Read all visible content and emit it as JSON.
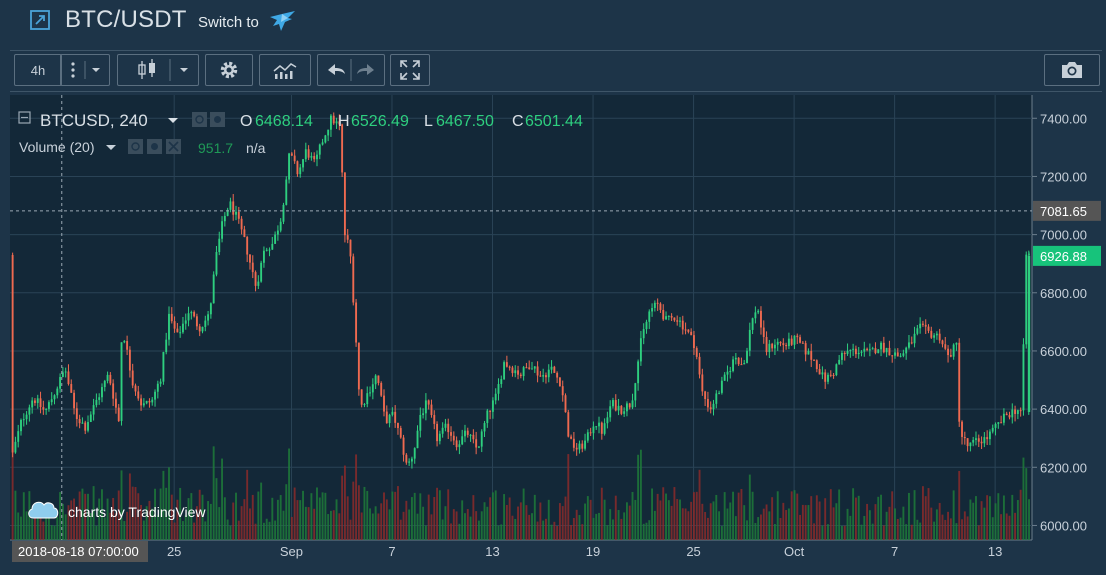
{
  "header": {
    "pair": "BTC/USDT",
    "switch_label": "Switch to",
    "pair_icon": "external-link-icon",
    "switch_icon": "bird-logo-icon"
  },
  "toolbar": {
    "interval": "4h",
    "icons": [
      "more-vertical-icon",
      "chevron-down-icon",
      "candlestick-icon",
      "chevron-down-icon",
      "gear-icon",
      "indicators-icon",
      "undo-icon",
      "redo-icon",
      "fullscreen-icon",
      "camera-icon"
    ]
  },
  "legend": {
    "symbol": "BTCUSD, 240",
    "open_label": "O",
    "open": "6468.14",
    "high_label": "H",
    "high": "6526.49",
    "low_label": "L",
    "low": "6467.50",
    "close_label": "C",
    "close": "6501.44",
    "volume_name": "Volume (20)",
    "volume_value": "951.7",
    "volume_na": "n/a"
  },
  "watermark": "charts by TradingView",
  "colors": {
    "up": "#2ecf7f",
    "down": "#ef6a50",
    "volume_up": "#1f7a3a",
    "volume_down": "#8b2a2a",
    "background": "#1d3448",
    "chart_bg": "#132838",
    "grid": "#2a4356",
    "last_price": "#17c37b",
    "crosshair_label": "#555555"
  },
  "crosshair": {
    "time_label": "2018-08-18 07:00:00",
    "price_label": "7081.65"
  },
  "last_price_label": "6926.88",
  "chart_data": {
    "type": "candlestick",
    "symbol": "BTCUSD",
    "interval": "240",
    "y_ticks": [
      "7400.00",
      "7200.00",
      "7000.00",
      "6800.00",
      "6600.00",
      "6400.00",
      "6200.00",
      "6000.00"
    ],
    "ylim": [
      5950,
      7480
    ],
    "x_ticks": [
      {
        "day": 25,
        "label": "25"
      },
      {
        "day": 32,
        "label": "Sep"
      },
      {
        "day": 38,
        "label": "7"
      },
      {
        "day": 44,
        "label": "13"
      },
      {
        "day": 50,
        "label": "19"
      },
      {
        "day": 56,
        "label": "25"
      },
      {
        "day": 62,
        "label": "Oct"
      },
      {
        "day": 68,
        "label": "7"
      },
      {
        "day": 74,
        "label": "13"
      }
    ],
    "x_range_days": [
      15.2,
      76.2
    ],
    "crosshair_day": 18.29,
    "crosshair_price": 7081.65,
    "last_price": 6926.88,
    "close_path": [
      [
        15.3,
        6210
      ],
      [
        16,
        6360
      ],
      [
        16.7,
        6440
      ],
      [
        17.4,
        6390
      ],
      [
        18,
        6460
      ],
      [
        18.6,
        6540
      ],
      [
        19.2,
        6380
      ],
      [
        19.8,
        6340
      ],
      [
        20.4,
        6420
      ],
      [
        21.2,
        6520
      ],
      [
        21.8,
        6360
      ],
      [
        22,
        6690
      ],
      [
        22.6,
        6500
      ],
      [
        23.2,
        6410
      ],
      [
        23.8,
        6430
      ],
      [
        24.3,
        6510
      ],
      [
        24.8,
        6720
      ],
      [
        25.3,
        6650
      ],
      [
        26,
        6740
      ],
      [
        26.6,
        6680
      ],
      [
        27.2,
        6720
      ],
      [
        27.6,
        6920
      ],
      [
        28,
        7040
      ],
      [
        28.4,
        7110
      ],
      [
        28.9,
        7050
      ],
      [
        29.4,
        6960
      ],
      [
        30,
        6820
      ],
      [
        30.5,
        6950
      ],
      [
        31,
        6970
      ],
      [
        31.5,
        7060
      ],
      [
        32,
        7280
      ],
      [
        32.5,
        7210
      ],
      [
        33,
        7290
      ],
      [
        33.5,
        7240
      ],
      [
        34,
        7330
      ],
      [
        34.5,
        7400
      ],
      [
        35,
        7370
      ],
      [
        35.3,
        7000
      ],
      [
        35.6,
        6950
      ],
      [
        35.9,
        6700
      ],
      [
        36.2,
        6400
      ],
      [
        36.7,
        6460
      ],
      [
        37.2,
        6520
      ],
      [
        37.7,
        6360
      ],
      [
        38.2,
        6380
      ],
      [
        38.7,
        6280
      ],
      [
        39,
        6200
      ],
      [
        39.4,
        6250
      ],
      [
        39.8,
        6380
      ],
      [
        40.2,
        6420
      ],
      [
        40.8,
        6300
      ],
      [
        41.4,
        6340
      ],
      [
        42,
        6280
      ],
      [
        42.6,
        6320
      ],
      [
        43.2,
        6260
      ],
      [
        43.8,
        6380
      ],
      [
        44.3,
        6440
      ],
      [
        44.8,
        6560
      ],
      [
        45.3,
        6540
      ],
      [
        45.8,
        6520
      ],
      [
        46.4,
        6560
      ],
      [
        47,
        6510
      ],
      [
        47.6,
        6540
      ],
      [
        48.2,
        6490
      ],
      [
        48.7,
        6290
      ],
      [
        49.2,
        6260
      ],
      [
        49.7,
        6290
      ],
      [
        50.2,
        6360
      ],
      [
        50.7,
        6320
      ],
      [
        51.2,
        6420
      ],
      [
        51.8,
        6400
      ],
      [
        52.4,
        6420
      ],
      [
        53,
        6640
      ],
      [
        53.5,
        6740
      ],
      [
        54,
        6760
      ],
      [
        54.5,
        6700
      ],
      [
        55,
        6720
      ],
      [
        55.6,
        6680
      ],
      [
        56.2,
        6620
      ],
      [
        56.6,
        6460
      ],
      [
        57.1,
        6400
      ],
      [
        57.6,
        6460
      ],
      [
        58.1,
        6520
      ],
      [
        58.6,
        6580
      ],
      [
        59.1,
        6550
      ],
      [
        59.5,
        6680
      ],
      [
        59.9,
        6760
      ],
      [
        60.4,
        6600
      ],
      [
        61,
        6630
      ],
      [
        61.6,
        6620
      ],
      [
        62.2,
        6640
      ],
      [
        62.8,
        6600
      ],
      [
        63.4,
        6560
      ],
      [
        63.9,
        6500
      ],
      [
        64.4,
        6520
      ],
      [
        64.9,
        6580
      ],
      [
        65.4,
        6600
      ],
      [
        66,
        6600
      ],
      [
        66.6,
        6590
      ],
      [
        67.2,
        6620
      ],
      [
        67.8,
        6600
      ],
      [
        68.4,
        6580
      ],
      [
        69,
        6620
      ],
      [
        69.6,
        6680
      ],
      [
        70.2,
        6660
      ],
      [
        70.8,
        6650
      ],
      [
        71.3,
        6580
      ],
      [
        71.8,
        6620
      ],
      [
        72,
        6320
      ],
      [
        72.5,
        6270
      ],
      [
        73,
        6290
      ],
      [
        73.6,
        6300
      ],
      [
        74.2,
        6340
      ],
      [
        74.8,
        6380
      ],
      [
        75.4,
        6400
      ],
      [
        75.7,
        6390
      ],
      [
        75.95,
        6930
      ]
    ]
  }
}
